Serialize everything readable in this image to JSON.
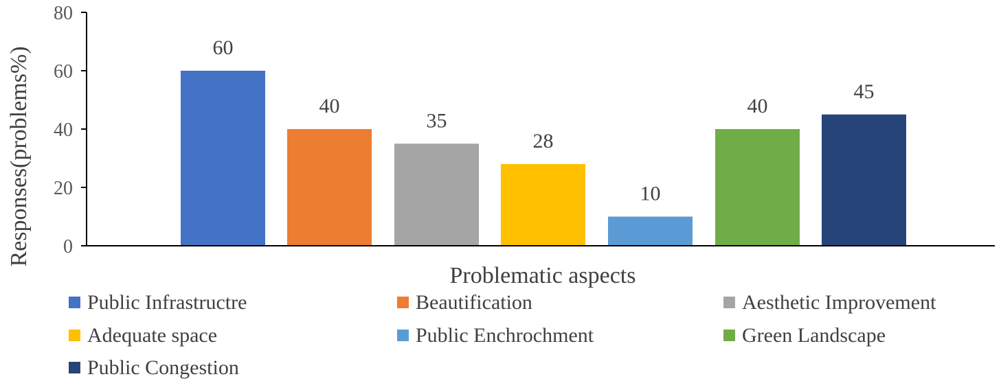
{
  "chart_data": {
    "type": "bar",
    "categories": [
      "Public Infrastructre",
      "Beautification",
      "Aesthetic Improvement",
      "Adequate space",
      "Public Enchrochment",
      "Green Landscape",
      "Public Congestion"
    ],
    "values": [
      60,
      40,
      35,
      28,
      10,
      40,
      45
    ],
    "colors": [
      "#4472C4",
      "#ED7D31",
      "#A5A5A5",
      "#FFC000",
      "#5B9BD5",
      "#70AD47",
      "#264478"
    ],
    "xlabel": "Problematic aspects",
    "ylabel": "Responses(problems%)",
    "ylim": [
      0,
      80
    ],
    "yticks": [
      0,
      20,
      40,
      60,
      80
    ],
    "grid": false,
    "legend_position": "bottom",
    "data_labels": true
  }
}
